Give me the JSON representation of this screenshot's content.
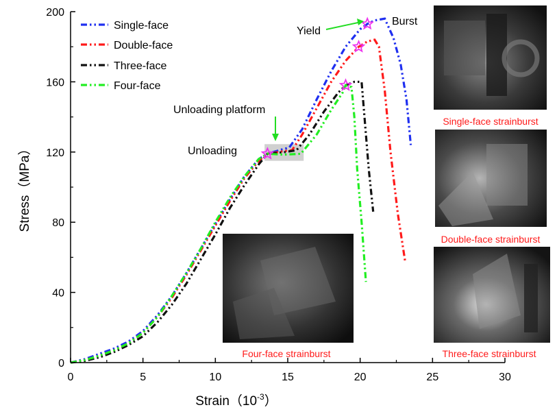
{
  "chart_data": {
    "type": "line",
    "xlabel": "Strain（10",
    "xlabel_sup": "-3",
    "xlabel_close": "）",
    "ylabel": "Stress（MPa）",
    "xlim": [
      0,
      30
    ],
    "ylim": [
      0,
      200
    ],
    "xticks": [
      0,
      5,
      10,
      15,
      20,
      25,
      30
    ],
    "yticks": [
      0,
      40,
      80,
      120,
      160,
      200
    ],
    "grid": false,
    "legend": "top-left",
    "series": [
      {
        "name": "Single-face",
        "color": "#1f2ff0",
        "points": [
          [
            0,
            0
          ],
          [
            1,
            2
          ],
          [
            2,
            5
          ],
          [
            3,
            8
          ],
          [
            4,
            12
          ],
          [
            5,
            18
          ],
          [
            6,
            27
          ],
          [
            7,
            38
          ],
          [
            8,
            51
          ],
          [
            9,
            65
          ],
          [
            10,
            79
          ],
          [
            11,
            93
          ],
          [
            12,
            106
          ],
          [
            13,
            116
          ],
          [
            13.6,
            119
          ],
          [
            14.6,
            121.5
          ],
          [
            15.1,
            122.5
          ],
          [
            16,
            133
          ],
          [
            17,
            150
          ],
          [
            18,
            166
          ],
          [
            19,
            180
          ],
          [
            20,
            190
          ],
          [
            20.5,
            193
          ],
          [
            21,
            195
          ],
          [
            21.7,
            196
          ],
          [
            22.3,
            185
          ],
          [
            22.8,
            170
          ],
          [
            23.2,
            150
          ],
          [
            23.5,
            124
          ]
        ]
      },
      {
        "name": "Double-face",
        "color": "#ff1a1a",
        "points": [
          [
            0,
            0
          ],
          [
            1,
            1.5
          ],
          [
            2,
            4
          ],
          [
            3,
            7
          ],
          [
            4,
            11
          ],
          [
            5,
            17
          ],
          [
            6,
            26
          ],
          [
            7,
            37
          ],
          [
            8,
            50
          ],
          [
            9,
            64
          ],
          [
            10,
            78
          ],
          [
            11,
            92
          ],
          [
            12,
            105
          ],
          [
            13,
            115
          ],
          [
            13.6,
            119
          ],
          [
            14.7,
            120.5
          ],
          [
            15.3,
            121
          ],
          [
            16,
            130
          ],
          [
            17,
            145
          ],
          [
            18,
            160
          ],
          [
            19,
            172
          ],
          [
            19.9,
            180
          ],
          [
            20.5,
            183
          ],
          [
            21,
            184
          ],
          [
            21.3,
            180
          ],
          [
            21.7,
            155
          ],
          [
            22.1,
            120
          ],
          [
            22.6,
            85
          ],
          [
            23.1,
            58
          ]
        ]
      },
      {
        "name": "Three-face",
        "color": "#111111",
        "points": [
          [
            0,
            0
          ],
          [
            1,
            1
          ],
          [
            2,
            3
          ],
          [
            3,
            6
          ],
          [
            4,
            10
          ],
          [
            5,
            15
          ],
          [
            6,
            23
          ],
          [
            7,
            33
          ],
          [
            8,
            45
          ],
          [
            9,
            59
          ],
          [
            10,
            73
          ],
          [
            11,
            88
          ],
          [
            12,
            101
          ],
          [
            13,
            113
          ],
          [
            13.6,
            119
          ],
          [
            14.8,
            120
          ],
          [
            15.6,
            121
          ],
          [
            16.5,
            130
          ],
          [
            17.5,
            143
          ],
          [
            18.5,
            154
          ],
          [
            19,
            158
          ],
          [
            19.6,
            160
          ],
          [
            20.1,
            160
          ],
          [
            20.3,
            140
          ],
          [
            20.6,
            110
          ],
          [
            20.9,
            86
          ]
        ]
      },
      {
        "name": "Four-face",
        "color": "#22ee22",
        "points": [
          [
            0,
            0
          ],
          [
            1,
            1.5
          ],
          [
            2,
            4
          ],
          [
            3,
            7
          ],
          [
            4,
            11
          ],
          [
            5,
            17
          ],
          [
            6,
            26
          ],
          [
            7,
            38
          ],
          [
            8,
            51
          ],
          [
            9,
            65
          ],
          [
            10,
            80
          ],
          [
            11,
            94
          ],
          [
            12,
            106
          ],
          [
            13,
            116
          ],
          [
            13.6,
            119
          ],
          [
            14.7,
            118.5
          ],
          [
            15.9,
            119
          ],
          [
            17,
            130
          ],
          [
            18,
            144
          ],
          [
            18.8,
            154
          ],
          [
            19,
            158
          ],
          [
            19.4,
            157
          ],
          [
            19.6,
            140
          ],
          [
            19.8,
            110
          ],
          [
            20.1,
            80
          ],
          [
            20.4,
            46
          ]
        ]
      }
    ],
    "markers": [
      {
        "series": "Single-face",
        "x": 20.5,
        "y": 193
      },
      {
        "series": "Double-face",
        "x": 19.9,
        "y": 180
      },
      {
        "series": "Four-face",
        "x": 19.0,
        "y": 158
      },
      {
        "series": "all",
        "x": 13.6,
        "y": 119
      }
    ],
    "annotations": {
      "yield": "Yield",
      "burst": "Burst",
      "unloading": "Unloading",
      "unloading_platform": "Unloading platform"
    },
    "photo_captions": [
      "Single-face strainburst",
      "Double-face strainburst",
      "Three-face strainburst",
      "Four-face strainburst"
    ],
    "colors": {
      "marker": "#ee33ee",
      "annotation_arrow": "#22dd22",
      "caption": "#ff1a1a",
      "platform_box": "#c8c8c8"
    }
  }
}
